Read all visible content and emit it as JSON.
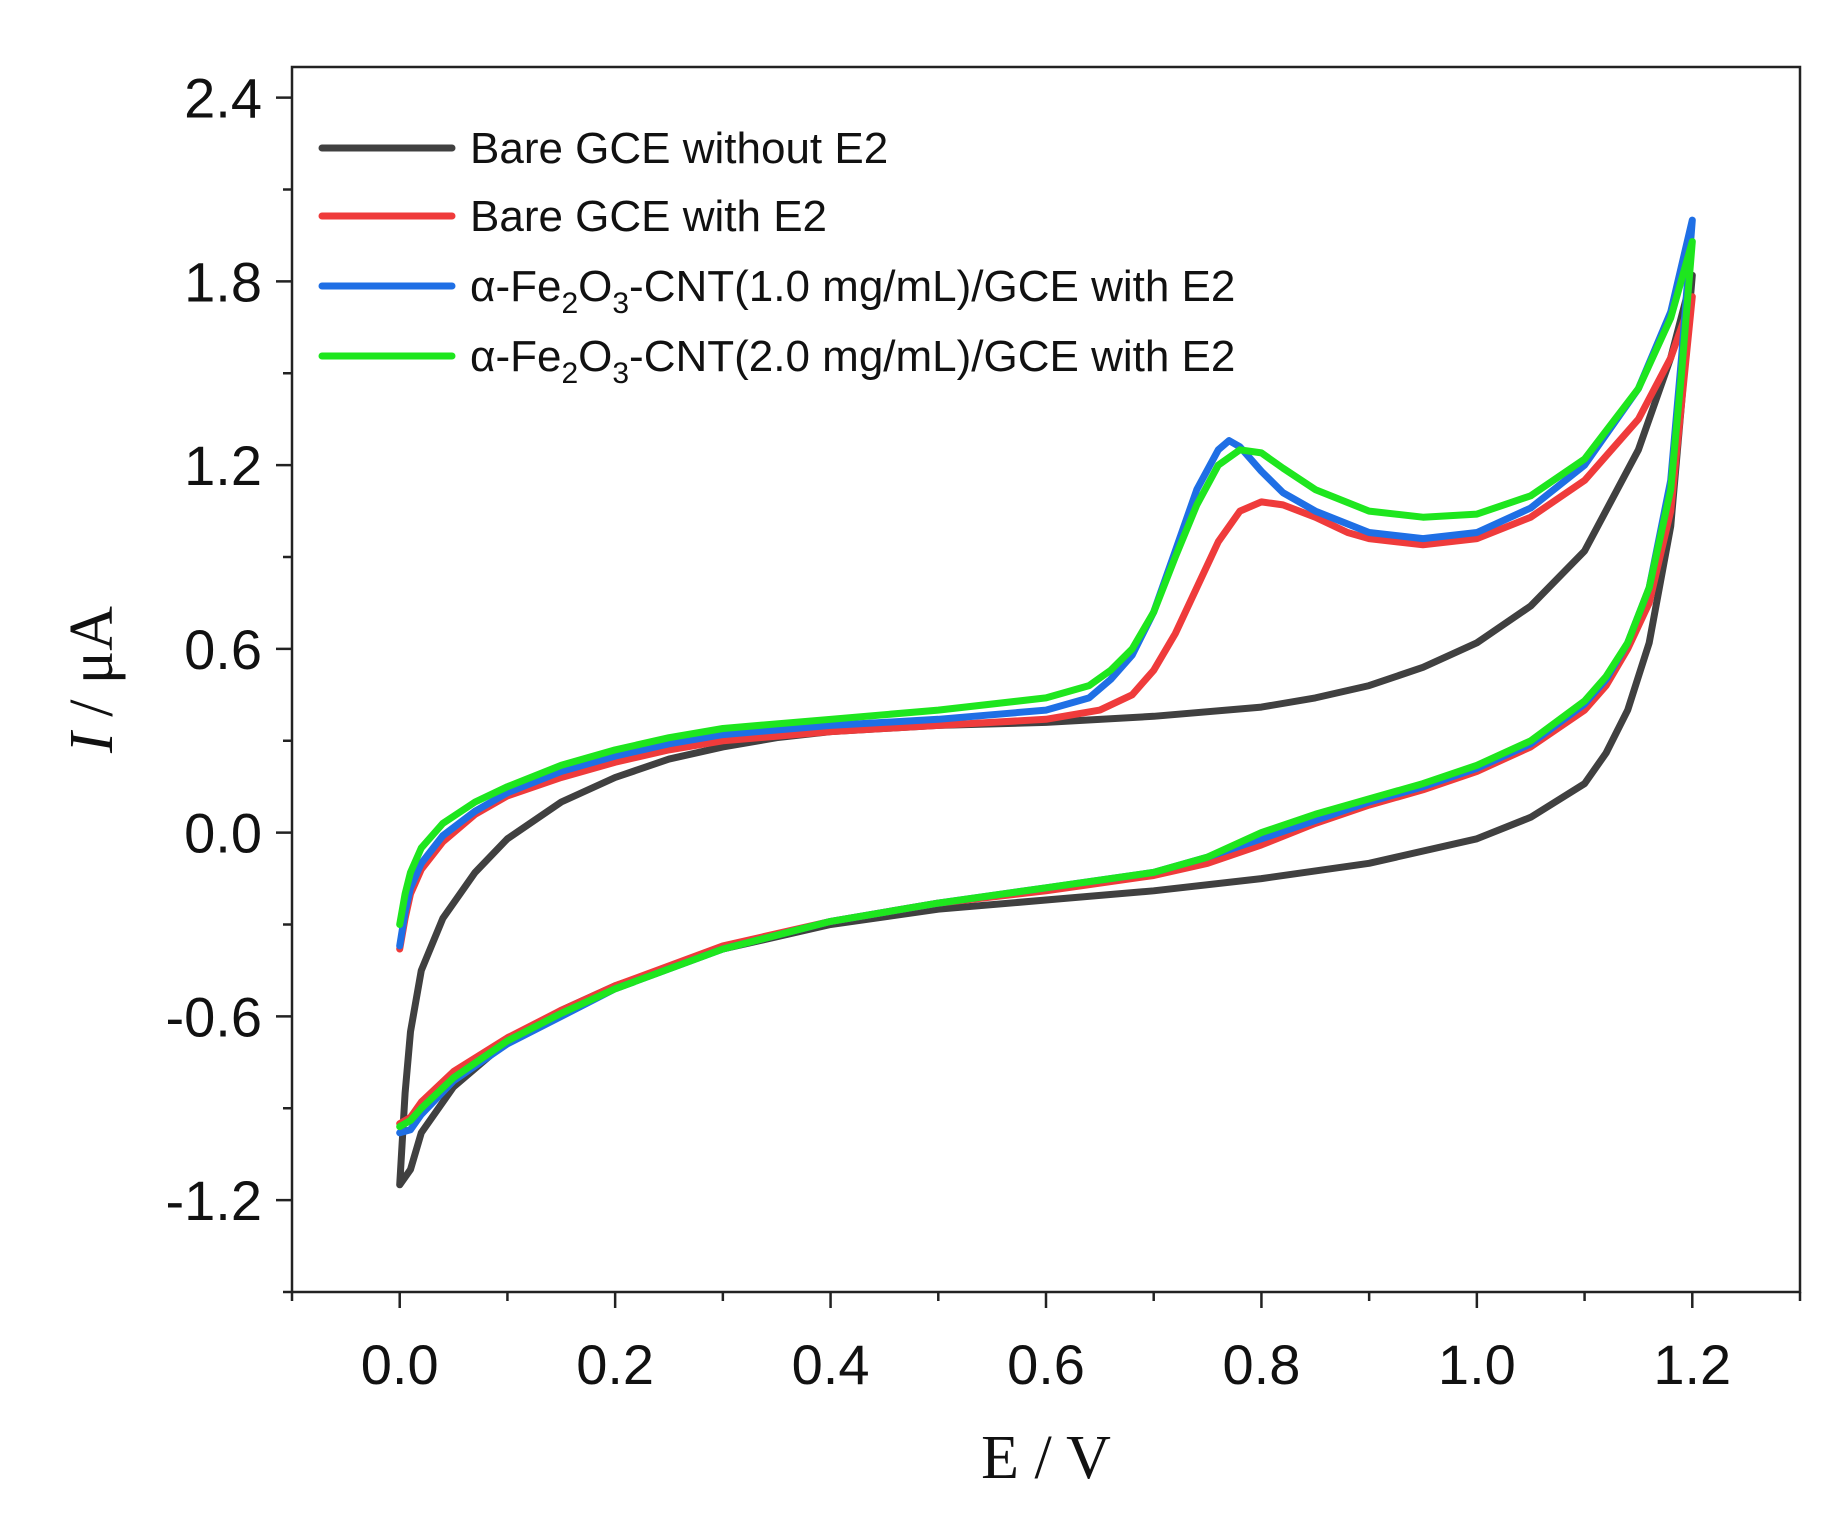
{
  "chart_data": {
    "type": "line",
    "title": "",
    "xlabel": "E / V",
    "ylabel_italic": "I",
    "ylabel_rest": " / μA",
    "xlim": [
      -0.1,
      1.3
    ],
    "ylim": [
      -1.5,
      2.5
    ],
    "x_ticks": [
      {
        "value": 0.0,
        "label": "0.0"
      },
      {
        "value": 0.2,
        "label": "0.2"
      },
      {
        "value": 0.4,
        "label": "0.4"
      },
      {
        "value": 0.6,
        "label": "0.6"
      },
      {
        "value": 0.8,
        "label": "0.8"
      },
      {
        "value": 1.0,
        "label": "1.0"
      },
      {
        "value": 1.2,
        "label": "1.2"
      }
    ],
    "x_minor_ticks": [
      -0.1,
      0.1,
      0.3,
      0.5,
      0.7,
      0.9,
      1.1,
      1.3
    ],
    "y_ticks": [
      {
        "value": -1.2,
        "label": "-1.2"
      },
      {
        "value": -0.6,
        "label": "-0.6"
      },
      {
        "value": 0.0,
        "label": "0.0"
      },
      {
        "value": 0.6,
        "label": "0.6"
      },
      {
        "value": 1.2,
        "label": "1.2"
      },
      {
        "value": 1.8,
        "label": "1.8"
      },
      {
        "value": 2.4,
        "label": "2.4"
      }
    ],
    "y_minor_ticks": [
      -1.5,
      -0.9,
      -0.3,
      0.3,
      0.9,
      1.5,
      2.1
    ],
    "grid": false,
    "legend_position": "top-left",
    "series": [
      {
        "name": "Bare GCE without E2",
        "legend_parts": [
          {
            "t": "Bare GCE without E2",
            "s": ""
          }
        ],
        "color": "#404040",
        "forward": [
          [
            0.0,
            -1.15
          ],
          [
            0.005,
            -0.85
          ],
          [
            0.01,
            -0.65
          ],
          [
            0.02,
            -0.45
          ],
          [
            0.04,
            -0.28
          ],
          [
            0.07,
            -0.13
          ],
          [
            0.1,
            -0.02
          ],
          [
            0.15,
            0.1
          ],
          [
            0.2,
            0.18
          ],
          [
            0.25,
            0.24
          ],
          [
            0.3,
            0.28
          ],
          [
            0.35,
            0.31
          ],
          [
            0.4,
            0.33
          ],
          [
            0.5,
            0.35
          ],
          [
            0.6,
            0.36
          ],
          [
            0.7,
            0.38
          ],
          [
            0.8,
            0.41
          ],
          [
            0.85,
            0.44
          ],
          [
            0.9,
            0.48
          ],
          [
            0.95,
            0.54
          ],
          [
            1.0,
            0.62
          ],
          [
            1.05,
            0.74
          ],
          [
            1.1,
            0.92
          ],
          [
            1.15,
            1.25
          ],
          [
            1.18,
            1.55
          ],
          [
            1.2,
            1.82
          ]
        ],
        "reverse": [
          [
            1.2,
            1.82
          ],
          [
            1.19,
            1.4
          ],
          [
            1.18,
            1.0
          ],
          [
            1.16,
            0.62
          ],
          [
            1.14,
            0.4
          ],
          [
            1.12,
            0.26
          ],
          [
            1.1,
            0.16
          ],
          [
            1.05,
            0.05
          ],
          [
            1.0,
            -0.02
          ],
          [
            0.9,
            -0.1
          ],
          [
            0.8,
            -0.15
          ],
          [
            0.7,
            -0.19
          ],
          [
            0.6,
            -0.22
          ],
          [
            0.5,
            -0.25
          ],
          [
            0.4,
            -0.3
          ],
          [
            0.3,
            -0.38
          ],
          [
            0.2,
            -0.5
          ],
          [
            0.15,
            -0.58
          ],
          [
            0.1,
            -0.68
          ],
          [
            0.05,
            -0.83
          ],
          [
            0.02,
            -0.98
          ],
          [
            0.01,
            -1.1
          ],
          [
            0.0,
            -1.15
          ]
        ]
      },
      {
        "name": "Bare GCE with E2",
        "legend_parts": [
          {
            "t": "Bare GCE with E2",
            "s": ""
          }
        ],
        "color": "#ef3b3b",
        "forward": [
          [
            0.0,
            -0.38
          ],
          [
            0.005,
            -0.28
          ],
          [
            0.01,
            -0.2
          ],
          [
            0.02,
            -0.12
          ],
          [
            0.04,
            -0.03
          ],
          [
            0.07,
            0.06
          ],
          [
            0.1,
            0.12
          ],
          [
            0.15,
            0.18
          ],
          [
            0.2,
            0.23
          ],
          [
            0.25,
            0.27
          ],
          [
            0.3,
            0.3
          ],
          [
            0.4,
            0.33
          ],
          [
            0.5,
            0.35
          ],
          [
            0.6,
            0.37
          ],
          [
            0.65,
            0.4
          ],
          [
            0.68,
            0.45
          ],
          [
            0.7,
            0.53
          ],
          [
            0.72,
            0.65
          ],
          [
            0.74,
            0.8
          ],
          [
            0.76,
            0.95
          ],
          [
            0.78,
            1.05
          ],
          [
            0.8,
            1.08
          ],
          [
            0.82,
            1.07
          ],
          [
            0.85,
            1.03
          ],
          [
            0.88,
            0.98
          ],
          [
            0.9,
            0.96
          ],
          [
            0.95,
            0.94
          ],
          [
            1.0,
            0.96
          ],
          [
            1.05,
            1.03
          ],
          [
            1.1,
            1.15
          ],
          [
            1.15,
            1.35
          ],
          [
            1.18,
            1.55
          ],
          [
            1.2,
            1.75
          ]
        ],
        "reverse": [
          [
            1.2,
            1.75
          ],
          [
            1.19,
            1.4
          ],
          [
            1.18,
            1.05
          ],
          [
            1.16,
            0.75
          ],
          [
            1.14,
            0.6
          ],
          [
            1.12,
            0.48
          ],
          [
            1.1,
            0.4
          ],
          [
            1.05,
            0.28
          ],
          [
            1.0,
            0.2
          ],
          [
            0.95,
            0.14
          ],
          [
            0.9,
            0.09
          ],
          [
            0.85,
            0.03
          ],
          [
            0.8,
            -0.04
          ],
          [
            0.75,
            -0.1
          ],
          [
            0.7,
            -0.14
          ],
          [
            0.6,
            -0.19
          ],
          [
            0.5,
            -0.23
          ],
          [
            0.4,
            -0.29
          ],
          [
            0.3,
            -0.37
          ],
          [
            0.2,
            -0.5
          ],
          [
            0.15,
            -0.58
          ],
          [
            0.1,
            -0.67
          ],
          [
            0.05,
            -0.78
          ],
          [
            0.02,
            -0.88
          ],
          [
            0.01,
            -0.93
          ],
          [
            0.0,
            -0.95
          ]
        ]
      },
      {
        "name": "α-Fe₂O₃-CNT(1.0 mg/mL)/GCE with E2",
        "legend_parts": [
          {
            "t": "α-Fe",
            "s": ""
          },
          {
            "t": "2",
            "s": "sub"
          },
          {
            "t": "O",
            "s": ""
          },
          {
            "t": "3",
            "s": "sub"
          },
          {
            "t": "-CNT(1.0 mg/mL)/GCE with E2",
            "s": ""
          }
        ],
        "color": "#1f6fe5",
        "forward": [
          [
            0.0,
            -0.37
          ],
          [
            0.005,
            -0.26
          ],
          [
            0.01,
            -0.18
          ],
          [
            0.02,
            -0.1
          ],
          [
            0.04,
            -0.01
          ],
          [
            0.07,
            0.07
          ],
          [
            0.1,
            0.13
          ],
          [
            0.15,
            0.2
          ],
          [
            0.2,
            0.25
          ],
          [
            0.25,
            0.29
          ],
          [
            0.3,
            0.32
          ],
          [
            0.4,
            0.35
          ],
          [
            0.5,
            0.37
          ],
          [
            0.6,
            0.4
          ],
          [
            0.64,
            0.44
          ],
          [
            0.66,
            0.5
          ],
          [
            0.68,
            0.58
          ],
          [
            0.7,
            0.72
          ],
          [
            0.72,
            0.92
          ],
          [
            0.74,
            1.12
          ],
          [
            0.76,
            1.25
          ],
          [
            0.77,
            1.28
          ],
          [
            0.78,
            1.26
          ],
          [
            0.8,
            1.18
          ],
          [
            0.82,
            1.11
          ],
          [
            0.85,
            1.05
          ],
          [
            0.9,
            0.98
          ],
          [
            0.95,
            0.96
          ],
          [
            1.0,
            0.98
          ],
          [
            1.05,
            1.06
          ],
          [
            1.1,
            1.2
          ],
          [
            1.15,
            1.45
          ],
          [
            1.18,
            1.7
          ],
          [
            1.2,
            2.0
          ]
        ],
        "reverse": [
          [
            1.2,
            2.0
          ],
          [
            1.19,
            1.55
          ],
          [
            1.18,
            1.15
          ],
          [
            1.16,
            0.8
          ],
          [
            1.14,
            0.62
          ],
          [
            1.12,
            0.5
          ],
          [
            1.1,
            0.42
          ],
          [
            1.05,
            0.29
          ],
          [
            1.0,
            0.21
          ],
          [
            0.95,
            0.15
          ],
          [
            0.9,
            0.1
          ],
          [
            0.85,
            0.04
          ],
          [
            0.8,
            -0.02
          ],
          [
            0.75,
            -0.08
          ],
          [
            0.7,
            -0.13
          ],
          [
            0.6,
            -0.18
          ],
          [
            0.5,
            -0.23
          ],
          [
            0.4,
            -0.29
          ],
          [
            0.3,
            -0.38
          ],
          [
            0.2,
            -0.51
          ],
          [
            0.15,
            -0.6
          ],
          [
            0.1,
            -0.69
          ],
          [
            0.05,
            -0.81
          ],
          [
            0.02,
            -0.92
          ],
          [
            0.01,
            -0.97
          ],
          [
            0.0,
            -0.98
          ]
        ]
      },
      {
        "name": "α-Fe₂O₃-CNT(2.0 mg/mL)/GCE with E2",
        "legend_parts": [
          {
            "t": "α-Fe",
            "s": ""
          },
          {
            "t": "2",
            "s": "sub"
          },
          {
            "t": "O",
            "s": ""
          },
          {
            "t": "3",
            "s": "sub"
          },
          {
            "t": "-CNT(2.0 mg/mL)/GCE with E2",
            "s": ""
          }
        ],
        "color": "#1ee61e",
        "forward": [
          [
            0.0,
            -0.3
          ],
          [
            0.005,
            -0.2
          ],
          [
            0.01,
            -0.13
          ],
          [
            0.02,
            -0.05
          ],
          [
            0.04,
            0.03
          ],
          [
            0.07,
            0.1
          ],
          [
            0.1,
            0.15
          ],
          [
            0.15,
            0.22
          ],
          [
            0.2,
            0.27
          ],
          [
            0.25,
            0.31
          ],
          [
            0.3,
            0.34
          ],
          [
            0.4,
            0.37
          ],
          [
            0.5,
            0.4
          ],
          [
            0.6,
            0.44
          ],
          [
            0.64,
            0.48
          ],
          [
            0.66,
            0.53
          ],
          [
            0.68,
            0.6
          ],
          [
            0.7,
            0.72
          ],
          [
            0.72,
            0.9
          ],
          [
            0.74,
            1.07
          ],
          [
            0.76,
            1.2
          ],
          [
            0.78,
            1.25
          ],
          [
            0.8,
            1.24
          ],
          [
            0.82,
            1.19
          ],
          [
            0.85,
            1.12
          ],
          [
            0.9,
            1.05
          ],
          [
            0.95,
            1.03
          ],
          [
            1.0,
            1.04
          ],
          [
            1.05,
            1.1
          ],
          [
            1.1,
            1.22
          ],
          [
            1.15,
            1.45
          ],
          [
            1.18,
            1.68
          ],
          [
            1.2,
            1.93
          ]
        ],
        "reverse": [
          [
            1.2,
            1.93
          ],
          [
            1.19,
            1.5
          ],
          [
            1.18,
            1.12
          ],
          [
            1.16,
            0.8
          ],
          [
            1.14,
            0.62
          ],
          [
            1.12,
            0.51
          ],
          [
            1.1,
            0.43
          ],
          [
            1.05,
            0.3
          ],
          [
            1.0,
            0.22
          ],
          [
            0.95,
            0.16
          ],
          [
            0.9,
            0.11
          ],
          [
            0.85,
            0.06
          ],
          [
            0.8,
            0.0
          ],
          [
            0.75,
            -0.08
          ],
          [
            0.7,
            -0.13
          ],
          [
            0.6,
            -0.18
          ],
          [
            0.5,
            -0.23
          ],
          [
            0.4,
            -0.29
          ],
          [
            0.3,
            -0.38
          ],
          [
            0.2,
            -0.51
          ],
          [
            0.15,
            -0.59
          ],
          [
            0.1,
            -0.68
          ],
          [
            0.05,
            -0.8
          ],
          [
            0.02,
            -0.9
          ],
          [
            0.01,
            -0.94
          ],
          [
            0.0,
            -0.96
          ]
        ]
      }
    ]
  }
}
